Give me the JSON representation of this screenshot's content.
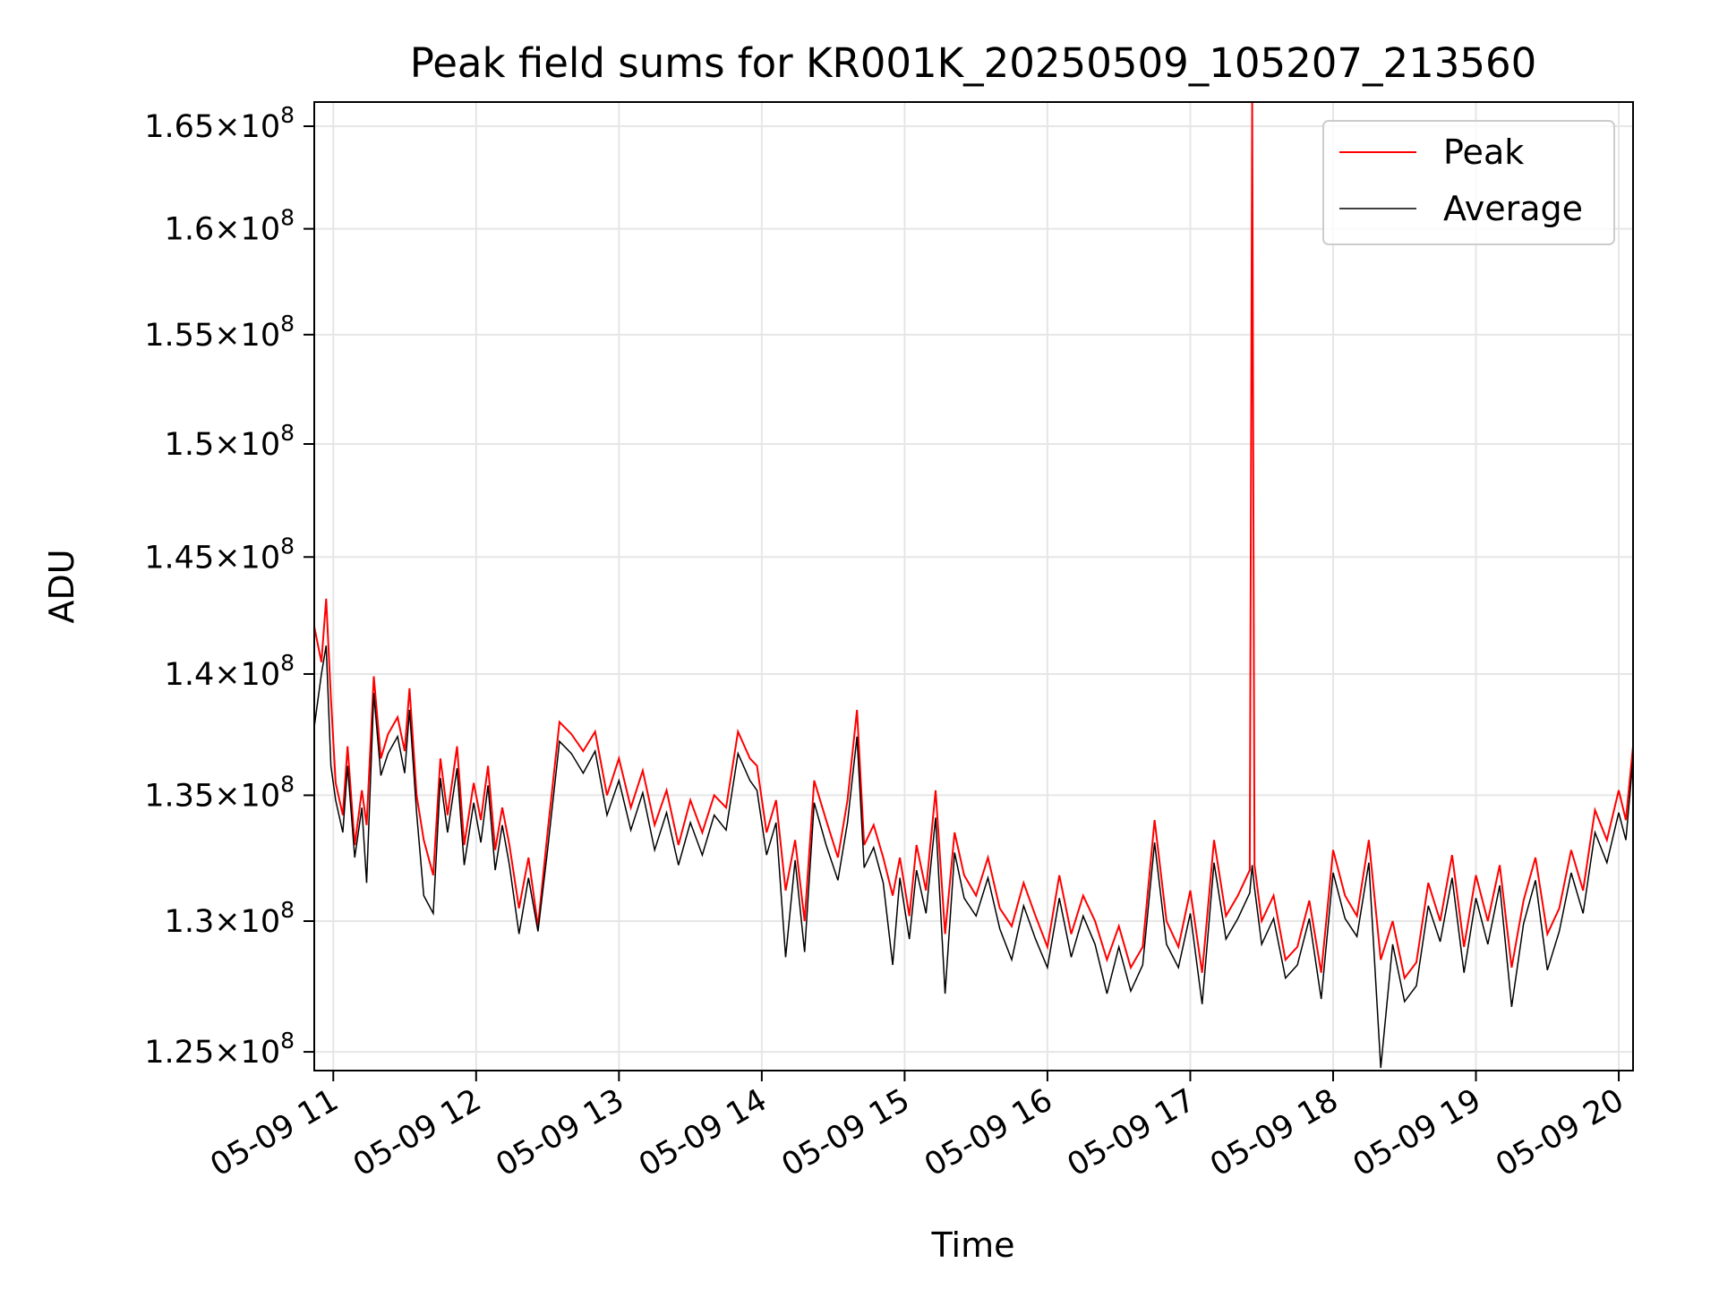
{
  "chart_data": {
    "type": "line",
    "title": "Peak field sums for KR001K_20250509_105207_213560",
    "xlabel": "Time",
    "ylabel": "ADU",
    "y_scale": "log",
    "grid": true,
    "legend_position": "top-right",
    "x_range": [
      "2025-05-09 10:52",
      "2025-05-09 20:06"
    ],
    "ylim": [
      124300000,
      166200000
    ],
    "x_tick_labels": [
      "05-09 11",
      "05-09 12",
      "05-09 13",
      "05-09 14",
      "05-09 15",
      "05-09 16",
      "05-09 17",
      "05-09 18",
      "05-09 19",
      "05-09 20"
    ],
    "y_ticks": [
      {
        "mantissa": "1.25",
        "exponent": "8",
        "value": 125000000
      },
      {
        "mantissa": "1.3",
        "exponent": "8",
        "value": 130000000
      },
      {
        "mantissa": "1.35",
        "exponent": "8",
        "value": 135000000
      },
      {
        "mantissa": "1.4",
        "exponent": "8",
        "value": 140000000
      },
      {
        "mantissa": "1.45",
        "exponent": "8",
        "value": 145000000
      },
      {
        "mantissa": "1.5",
        "exponent": "8",
        "value": 150000000
      },
      {
        "mantissa": "1.55",
        "exponent": "8",
        "value": 155000000
      },
      {
        "mantissa": "1.6",
        "exponent": "8",
        "value": 160000000
      },
      {
        "mantissa": "1.65",
        "exponent": "8",
        "value": 165000000
      }
    ],
    "series": [
      {
        "name": "Peak",
        "color": "#ff0000",
        "x": [
          "2025-05-09 10:52",
          "2025-05-09 10:55",
          "2025-05-09 10:57",
          "2025-05-09 10:59",
          "2025-05-09 11:01",
          "2025-05-09 11:04",
          "2025-05-09 11:06",
          "2025-05-09 11:09",
          "2025-05-09 11:12",
          "2025-05-09 11:14",
          "2025-05-09 11:17",
          "2025-05-09 11:20",
          "2025-05-09 11:23",
          "2025-05-09 11:27",
          "2025-05-09 11:30",
          "2025-05-09 11:32",
          "2025-05-09 11:35",
          "2025-05-09 11:38",
          "2025-05-09 11:42",
          "2025-05-09 11:45",
          "2025-05-09 11:48",
          "2025-05-09 11:52",
          "2025-05-09 11:55",
          "2025-05-09 11:59",
          "2025-05-09 12:02",
          "2025-05-09 12:05",
          "2025-05-09 12:08",
          "2025-05-09 12:11",
          "2025-05-09 12:14",
          "2025-05-09 12:18",
          "2025-05-09 12:22",
          "2025-05-09 12:26",
          "2025-05-09 12:30",
          "2025-05-09 12:35",
          "2025-05-09 12:40",
          "2025-05-09 12:45",
          "2025-05-09 12:50",
          "2025-05-09 12:55",
          "2025-05-09 13:00",
          "2025-05-09 13:05",
          "2025-05-09 13:10",
          "2025-05-09 13:15",
          "2025-05-09 13:20",
          "2025-05-09 13:25",
          "2025-05-09 13:30",
          "2025-05-09 13:35",
          "2025-05-09 13:40",
          "2025-05-09 13:45",
          "2025-05-09 13:50",
          "2025-05-09 13:55",
          "2025-05-09 13:58",
          "2025-05-09 14:02",
          "2025-05-09 14:06",
          "2025-05-09 14:10",
          "2025-05-09 14:14",
          "2025-05-09 14:18",
          "2025-05-09 14:22",
          "2025-05-09 14:27",
          "2025-05-09 14:32",
          "2025-05-09 14:36",
          "2025-05-09 14:40",
          "2025-05-09 14:43",
          "2025-05-09 14:47",
          "2025-05-09 14:51",
          "2025-05-09 14:55",
          "2025-05-09 14:58",
          "2025-05-09 15:02",
          "2025-05-09 15:05",
          "2025-05-09 15:09",
          "2025-05-09 15:13",
          "2025-05-09 15:17",
          "2025-05-09 15:21",
          "2025-05-09 15:25",
          "2025-05-09 15:30",
          "2025-05-09 15:35",
          "2025-05-09 15:40",
          "2025-05-09 15:45",
          "2025-05-09 15:50",
          "2025-05-09 15:55",
          "2025-05-09 16:00",
          "2025-05-09 16:05",
          "2025-05-09 16:10",
          "2025-05-09 16:15",
          "2025-05-09 16:20",
          "2025-05-09 16:25",
          "2025-05-09 16:30",
          "2025-05-09 16:35",
          "2025-05-09 16:40",
          "2025-05-09 16:45",
          "2025-05-09 16:50",
          "2025-05-09 16:55",
          "2025-05-09 17:00",
          "2025-05-09 17:05",
          "2025-05-09 17:10",
          "2025-05-09 17:15",
          "2025-05-09 17:20",
          "2025-05-09 17:25",
          "2025-05-09 17:26",
          "2025-05-09 17:27",
          "2025-05-09 17:30",
          "2025-05-09 17:35",
          "2025-05-09 17:40",
          "2025-05-09 17:45",
          "2025-05-09 17:50",
          "2025-05-09 17:55",
          "2025-05-09 18:00",
          "2025-05-09 18:05",
          "2025-05-09 18:10",
          "2025-05-09 18:15",
          "2025-05-09 18:20",
          "2025-05-09 18:25",
          "2025-05-09 18:30",
          "2025-05-09 18:35",
          "2025-05-09 18:40",
          "2025-05-09 18:45",
          "2025-05-09 18:50",
          "2025-05-09 18:55",
          "2025-05-09 19:00",
          "2025-05-09 19:05",
          "2025-05-09 19:10",
          "2025-05-09 19:15",
          "2025-05-09 19:20",
          "2025-05-09 19:25",
          "2025-05-09 19:30",
          "2025-05-09 19:35",
          "2025-05-09 19:40",
          "2025-05-09 19:45",
          "2025-05-09 19:50",
          "2025-05-09 19:55",
          "2025-05-09 20:00",
          "2025-05-09 20:03",
          "2025-05-09 20:06"
        ],
        "values": [
          142000000,
          140500000,
          143200000,
          139000000,
          135500000,
          134200000,
          137000000,
          133000000,
          135200000,
          133800000,
          139900000,
          136500000,
          137500000,
          138200000,
          136800000,
          139400000,
          135000000,
          133200000,
          131800000,
          136500000,
          134200000,
          137000000,
          133000000,
          135500000,
          134000000,
          136200000,
          132800000,
          134500000,
          133000000,
          130500000,
          132500000,
          129800000,
          133500000,
          138000000,
          137500000,
          136800000,
          137600000,
          135000000,
          136500000,
          134500000,
          136000000,
          133800000,
          135200000,
          133000000,
          134800000,
          133500000,
          135000000,
          134500000,
          137600000,
          136500000,
          136200000,
          133500000,
          134800000,
          131200000,
          133200000,
          130000000,
          135600000,
          134000000,
          132500000,
          134800000,
          138500000,
          133000000,
          133800000,
          132500000,
          131000000,
          132500000,
          130200000,
          133000000,
          131200000,
          135200000,
          129500000,
          133500000,
          131800000,
          131000000,
          132500000,
          130500000,
          129800000,
          131500000,
          130200000,
          129000000,
          131800000,
          129500000,
          131000000,
          130000000,
          128500000,
          129800000,
          128200000,
          129000000,
          134000000,
          130000000,
          129000000,
          131200000,
          128000000,
          133200000,
          130200000,
          131000000,
          132000000,
          166200000,
          132200000,
          130000000,
          131000000,
          128500000,
          129000000,
          130800000,
          128000000,
          132800000,
          131000000,
          130200000,
          133200000,
          128500000,
          130000000,
          127800000,
          128400000,
          131500000,
          130000000,
          132600000,
          129000000,
          131800000,
          130000000,
          132200000,
          128200000,
          130800000,
          132500000,
          129500000,
          130500000,
          132800000,
          131200000,
          134400000,
          133200000,
          135200000,
          134000000,
          137000000
        ]
      },
      {
        "name": "Average",
        "color": "#000000",
        "x": [
          "2025-05-09 10:52",
          "2025-05-09 10:55",
          "2025-05-09 10:57",
          "2025-05-09 10:59",
          "2025-05-09 11:01",
          "2025-05-09 11:04",
          "2025-05-09 11:06",
          "2025-05-09 11:09",
          "2025-05-09 11:12",
          "2025-05-09 11:14",
          "2025-05-09 11:17",
          "2025-05-09 11:20",
          "2025-05-09 11:23",
          "2025-05-09 11:27",
          "2025-05-09 11:30",
          "2025-05-09 11:32",
          "2025-05-09 11:35",
          "2025-05-09 11:38",
          "2025-05-09 11:42",
          "2025-05-09 11:45",
          "2025-05-09 11:48",
          "2025-05-09 11:52",
          "2025-05-09 11:55",
          "2025-05-09 11:59",
          "2025-05-09 12:02",
          "2025-05-09 12:05",
          "2025-05-09 12:08",
          "2025-05-09 12:11",
          "2025-05-09 12:14",
          "2025-05-09 12:18",
          "2025-05-09 12:22",
          "2025-05-09 12:26",
          "2025-05-09 12:30",
          "2025-05-09 12:35",
          "2025-05-09 12:40",
          "2025-05-09 12:45",
          "2025-05-09 12:50",
          "2025-05-09 12:55",
          "2025-05-09 13:00",
          "2025-05-09 13:05",
          "2025-05-09 13:10",
          "2025-05-09 13:15",
          "2025-05-09 13:20",
          "2025-05-09 13:25",
          "2025-05-09 13:30",
          "2025-05-09 13:35",
          "2025-05-09 13:40",
          "2025-05-09 13:45",
          "2025-05-09 13:50",
          "2025-05-09 13:55",
          "2025-05-09 13:58",
          "2025-05-09 14:02",
          "2025-05-09 14:06",
          "2025-05-09 14:10",
          "2025-05-09 14:14",
          "2025-05-09 14:18",
          "2025-05-09 14:22",
          "2025-05-09 14:27",
          "2025-05-09 14:32",
          "2025-05-09 14:36",
          "2025-05-09 14:40",
          "2025-05-09 14:43",
          "2025-05-09 14:47",
          "2025-05-09 14:51",
          "2025-05-09 14:55",
          "2025-05-09 14:58",
          "2025-05-09 15:02",
          "2025-05-09 15:05",
          "2025-05-09 15:09",
          "2025-05-09 15:13",
          "2025-05-09 15:17",
          "2025-05-09 15:21",
          "2025-05-09 15:25",
          "2025-05-09 15:30",
          "2025-05-09 15:35",
          "2025-05-09 15:40",
          "2025-05-09 15:45",
          "2025-05-09 15:50",
          "2025-05-09 15:55",
          "2025-05-09 16:00",
          "2025-05-09 16:05",
          "2025-05-09 16:10",
          "2025-05-09 16:15",
          "2025-05-09 16:20",
          "2025-05-09 16:25",
          "2025-05-09 16:30",
          "2025-05-09 16:35",
          "2025-05-09 16:40",
          "2025-05-09 16:45",
          "2025-05-09 16:50",
          "2025-05-09 16:55",
          "2025-05-09 17:00",
          "2025-05-09 17:05",
          "2025-05-09 17:10",
          "2025-05-09 17:15",
          "2025-05-09 17:20",
          "2025-05-09 17:25",
          "2025-05-09 17:26",
          "2025-05-09 17:27",
          "2025-05-09 17:30",
          "2025-05-09 17:35",
          "2025-05-09 17:40",
          "2025-05-09 17:45",
          "2025-05-09 17:50",
          "2025-05-09 17:55",
          "2025-05-09 18:00",
          "2025-05-09 18:05",
          "2025-05-09 18:10",
          "2025-05-09 18:15",
          "2025-05-09 18:20",
          "2025-05-09 18:25",
          "2025-05-09 18:30",
          "2025-05-09 18:35",
          "2025-05-09 18:40",
          "2025-05-09 18:45",
          "2025-05-09 18:50",
          "2025-05-09 18:55",
          "2025-05-09 19:00",
          "2025-05-09 19:05",
          "2025-05-09 19:10",
          "2025-05-09 19:15",
          "2025-05-09 19:20",
          "2025-05-09 19:25",
          "2025-05-09 19:30",
          "2025-05-09 19:35",
          "2025-05-09 19:40",
          "2025-05-09 19:45",
          "2025-05-09 19:50",
          "2025-05-09 19:55",
          "2025-05-09 20:00",
          "2025-05-09 20:03",
          "2025-05-09 20:06"
        ],
        "values": [
          137800000,
          140000000,
          141200000,
          136200000,
          134800000,
          133500000,
          136200000,
          132500000,
          134500000,
          131500000,
          139200000,
          135800000,
          136700000,
          137400000,
          135900000,
          138500000,
          134300000,
          131000000,
          130300000,
          135700000,
          133500000,
          136100000,
          132200000,
          134700000,
          133100000,
          135400000,
          132000000,
          133800000,
          132200000,
          129500000,
          131700000,
          129600000,
          132800000,
          137200000,
          136700000,
          135900000,
          136800000,
          134200000,
          135600000,
          133600000,
          135100000,
          132800000,
          134300000,
          132200000,
          133900000,
          132600000,
          134200000,
          133600000,
          136700000,
          135600000,
          135200000,
          132600000,
          133900000,
          128600000,
          132400000,
          128800000,
          134700000,
          133000000,
          131600000,
          133900000,
          137400000,
          132100000,
          132900000,
          131500000,
          128300000,
          131700000,
          129300000,
          132000000,
          130300000,
          134100000,
          127200000,
          132700000,
          130900000,
          130200000,
          131700000,
          129700000,
          128500000,
          130600000,
          129300000,
          128200000,
          130900000,
          128600000,
          130200000,
          129100000,
          127200000,
          129000000,
          127300000,
          128300000,
          133100000,
          129100000,
          128200000,
          130300000,
          126800000,
          132300000,
          129300000,
          130100000,
          131100000,
          132200000,
          131300000,
          129100000,
          130100000,
          127800000,
          128300000,
          130100000,
          127000000,
          131900000,
          130100000,
          129400000,
          132300000,
          124400000,
          129100000,
          126900000,
          127500000,
          130600000,
          129200000,
          131700000,
          128000000,
          130900000,
          129100000,
          131400000,
          126700000,
          129900000,
          131600000,
          128100000,
          129600000,
          131900000,
          130300000,
          133500000,
          132300000,
          134300000,
          133200000,
          136500000
        ]
      }
    ]
  },
  "legend": {
    "peak_label": "Peak",
    "average_label": "Average"
  }
}
